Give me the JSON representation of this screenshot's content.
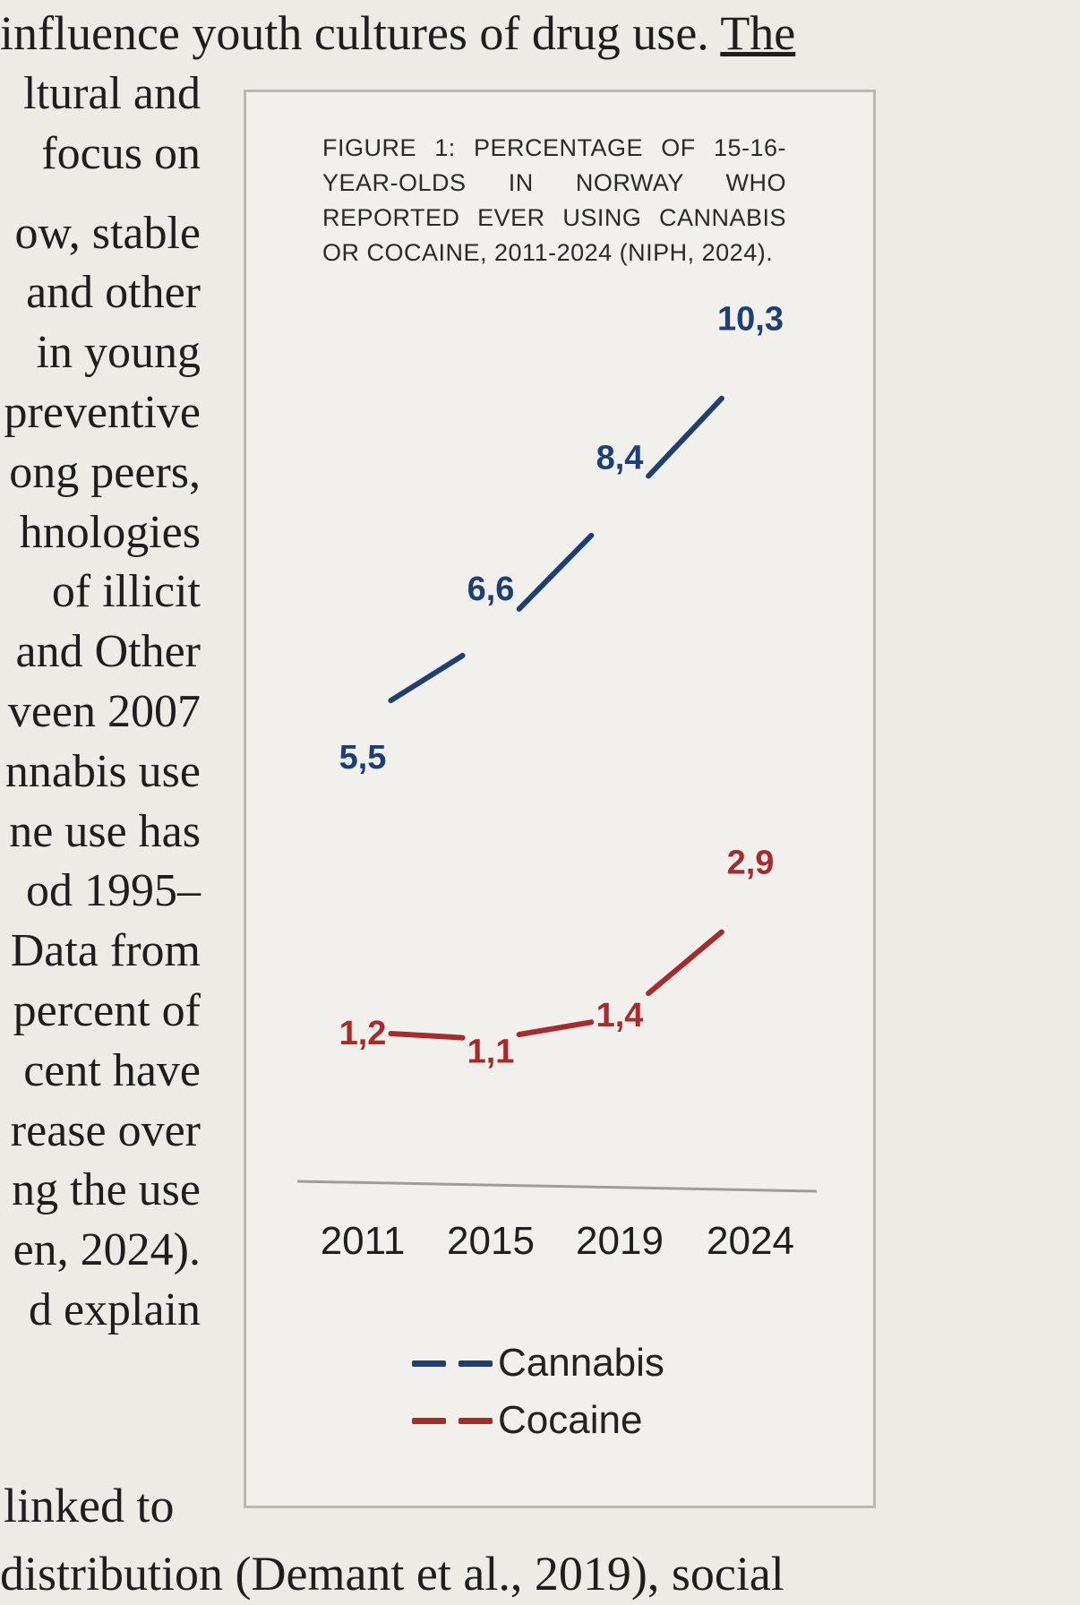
{
  "page": {
    "top_line_pre": "influence youth cultures of drug use. ",
    "top_line_underlined": "The",
    "left_column_lines": [
      "ltural and",
      "focus on",
      "",
      "ow, stable",
      "and other",
      "in young",
      "preventive",
      "ong peers,",
      "hnologies",
      "of illicit",
      "and Other",
      "veen 2007",
      "nnabis use",
      "ne use has",
      "od 1995–",
      "Data from",
      "percent of",
      "cent have",
      "rease over",
      "ng the use",
      "en, 2024).",
      "d explain"
    ],
    "bottom_line_1": "linked to",
    "bottom_line_2": "distribution (Demant et al., 2019), social"
  },
  "figure": {
    "title": "Figure 1: Percentage of 15-16-year-olds in Norway who reported ever using cannabis or cocaine, 2011-2024 (NIPH, 2024)."
  },
  "colors": {
    "cannabis": "#1d3f73",
    "cocaine": "#a72b2c",
    "axis": "#9e9d98"
  },
  "chart_data": {
    "type": "line",
    "title": "FIGURE 1: PERCENTAGE OF 15-16-YEAR-OLDS IN NORWAY WHO REPORTED EVER USING CANNABIS OR COCAINE, 2011-2024 (NIPH, 2024).",
    "x": [
      "2011",
      "2015",
      "2019",
      "2024"
    ],
    "xlabel": "",
    "ylabel": "",
    "series": [
      {
        "name": "Cannabis",
        "values": [
          5.5,
          6.6,
          8.4,
          10.3
        ],
        "labels": [
          "5,5",
          "6,6",
          "8,4",
          "10,3"
        ]
      },
      {
        "name": "Cocaine",
        "values": [
          1.2,
          1.1,
          1.4,
          2.9
        ],
        "labels": [
          "1,2",
          "1,1",
          "1,4",
          "2,9"
        ]
      }
    ],
    "legend": "bottom",
    "grid": false
  }
}
